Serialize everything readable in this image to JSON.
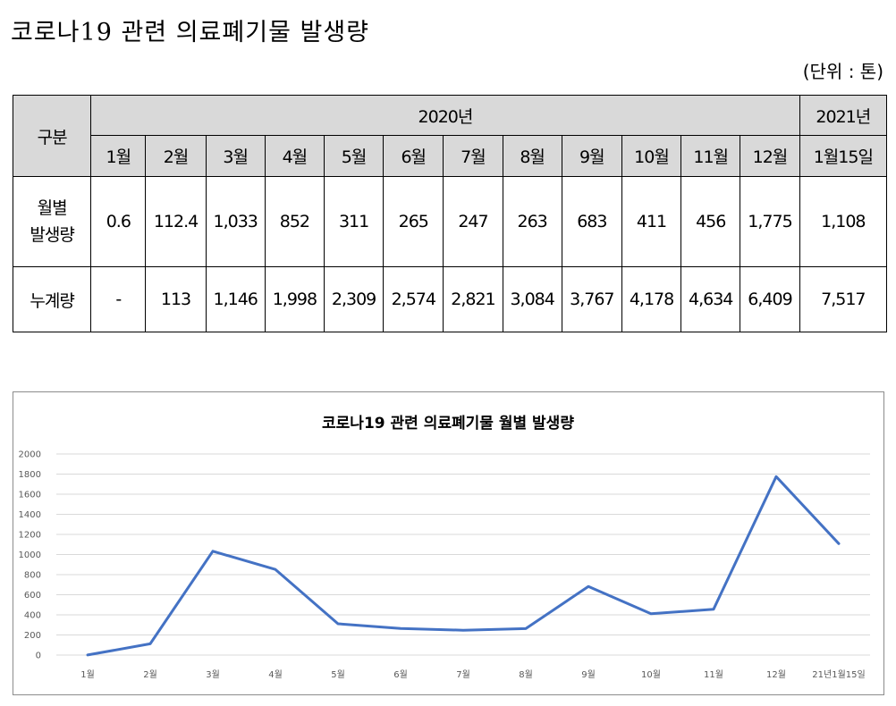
{
  "title": "코로나19 관련 의료폐기물 발생량",
  "unit_note": "(단위 : 톤)",
  "table": {
    "corner_label": "구분",
    "year_2020": "2020년",
    "year_2021": "2021년",
    "months": [
      "1월",
      "2월",
      "3월",
      "4월",
      "5월",
      "6월",
      "7월",
      "8월",
      "9월",
      "10월",
      "11월",
      "12월",
      "1월15일"
    ],
    "row_monthly_label": [
      "월별",
      "발생량"
    ],
    "row_monthly": [
      "0.6",
      "112.4",
      "1,033",
      "852",
      "311",
      "265",
      "247",
      "263",
      "683",
      "411",
      "456",
      "1,775",
      "1,108"
    ],
    "row_cumulative_label": "누계량",
    "row_cumulative": [
      "-",
      "113",
      "1,146",
      "1,998",
      "2,309",
      "2,574",
      "2,821",
      "3,084",
      "3,767",
      "4,178",
      "4,634",
      "6,409",
      "7,517"
    ]
  },
  "chart_data": {
    "type": "line",
    "title": "코로나19 관련 의료폐기물 월별 발생량",
    "categories": [
      "1월",
      "2월",
      "3월",
      "4월",
      "5월",
      "6월",
      "7월",
      "8월",
      "9월",
      "10월",
      "11월",
      "12월",
      "21년1월15일"
    ],
    "series": [
      {
        "values": [
          0.6,
          112.4,
          1033,
          852,
          311,
          265,
          247,
          263,
          683,
          411,
          456,
          1775,
          1108
        ]
      }
    ],
    "ylim": [
      0,
      2000
    ],
    "yticks": [
      "0",
      "200",
      "400",
      "600",
      "800",
      "1000",
      "1200",
      "1400",
      "1600",
      "1800",
      "2000"
    ],
    "grid": true,
    "line_color": "#4472c4"
  }
}
